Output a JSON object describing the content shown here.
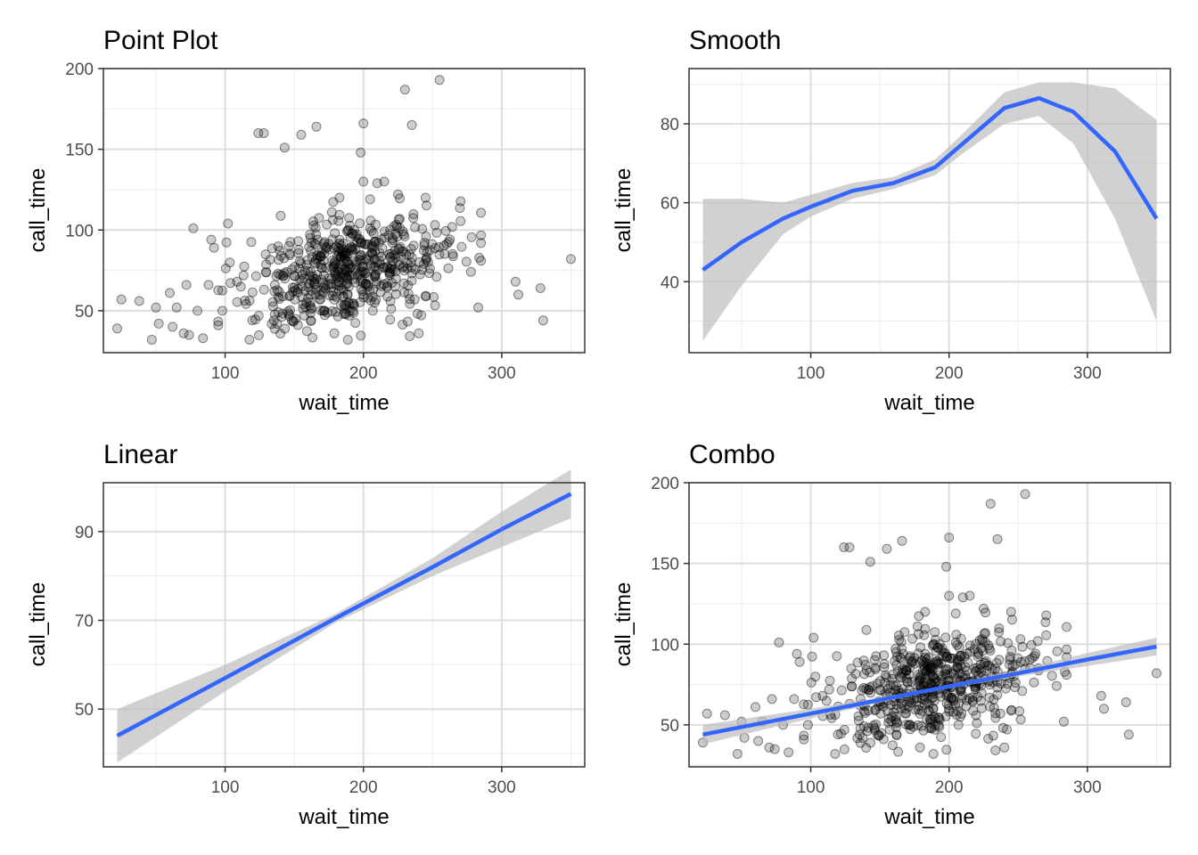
{
  "chart_data": [
    {
      "type": "scatter",
      "title": "Point Plot",
      "xlabel": "wait_time",
      "ylabel": "call_time",
      "xlim": [
        12,
        360
      ],
      "ylim": [
        24,
        200
      ],
      "xticks": [
        100,
        200,
        300
      ],
      "xtick_labels": [
        "100",
        "200",
        "300"
      ],
      "yticks": [
        50,
        100,
        150,
        200
      ],
      "ytick_labels": [
        "50",
        "100",
        "150",
        "200"
      ],
      "grid": true,
      "point_color": "#000000",
      "point_opacity": 0.2,
      "outliers": [
        [
          230,
          187
        ],
        [
          255,
          193
        ],
        [
          235,
          165
        ],
        [
          200,
          166
        ],
        [
          166,
          164
        ],
        [
          155,
          159
        ],
        [
          124,
          160
        ],
        [
          128,
          160
        ],
        [
          198,
          148
        ],
        [
          143,
          151
        ],
        [
          200,
          130
        ],
        [
          210,
          129
        ],
        [
          215,
          130
        ],
        [
          225,
          122
        ],
        [
          22,
          39
        ],
        [
          25,
          57
        ],
        [
          38,
          56
        ],
        [
          47,
          32
        ],
        [
          50,
          52
        ],
        [
          52,
          42
        ],
        [
          60,
          61
        ],
        [
          62,
          40
        ],
        [
          65,
          52
        ],
        [
          70,
          36
        ],
        [
          72,
          66
        ],
        [
          74,
          35
        ],
        [
          77,
          101
        ],
        [
          80,
          50
        ],
        [
          84,
          33
        ],
        [
          88,
          66
        ],
        [
          90,
          94
        ],
        [
          92,
          89
        ],
        [
          95,
          41
        ],
        [
          98,
          50
        ],
        [
          102,
          104
        ],
        [
          310,
          68
        ],
        [
          312,
          60
        ],
        [
          328,
          64
        ],
        [
          330,
          44
        ],
        [
          350,
          82
        ],
        [
          285,
          81
        ],
        [
          283,
          52
        ],
        [
          240,
          36
        ]
      ],
      "cluster": {
        "n": 560,
        "x_range": [
          95,
          285
        ],
        "x_center": 190,
        "y_center": 75,
        "y_min": 32,
        "y_max": 120
      }
    },
    {
      "type": "line",
      "title": "Smooth",
      "xlabel": "wait_time",
      "ylabel": "call_time",
      "xlim": [
        12,
        360
      ],
      "ylim": [
        22,
        94
      ],
      "xticks": [
        100,
        200,
        300
      ],
      "xtick_labels": [
        "100",
        "200",
        "300"
      ],
      "yticks": [
        40,
        60,
        80
      ],
      "ytick_labels": [
        "40",
        "60",
        "80"
      ],
      "grid": true,
      "line_color": "#3366FF",
      "band_color": "#BEBEBE",
      "series": [
        {
          "x": [
            22,
            50,
            80,
            100,
            130,
            160,
            190,
            210,
            240,
            265,
            290,
            320,
            350
          ],
          "y": [
            43,
            50,
            56,
            59,
            63,
            65,
            69,
            75,
            84,
            86.5,
            83,
            73,
            56
          ],
          "ymin": [
            25,
            39,
            52,
            56.5,
            61,
            63.5,
            67,
            72.5,
            80,
            82,
            75,
            56,
            30
          ],
          "ymax": [
            61,
            61,
            60,
            62,
            65,
            66.5,
            71,
            77.5,
            88,
            90.5,
            90.5,
            89,
            81
          ]
        }
      ]
    },
    {
      "type": "line",
      "title": "Linear",
      "xlabel": "wait_time",
      "ylabel": "call_time",
      "xlim": [
        12,
        360
      ],
      "ylim": [
        37,
        101
      ],
      "xticks": [
        100,
        200,
        300
      ],
      "xtick_labels": [
        "100",
        "200",
        "300"
      ],
      "yticks": [
        50,
        70,
        90
      ],
      "ytick_labels": [
        "50",
        "70",
        "90"
      ],
      "grid": true,
      "line_color": "#3366FF",
      "band_color": "#BEBEBE",
      "series": [
        {
          "x": [
            22,
            100,
            180,
            250,
            300,
            350
          ],
          "y": [
            44,
            57,
            70.5,
            82,
            90.5,
            98.5
          ],
          "ymin": [
            38,
            54,
            69.5,
            80,
            86.5,
            93
          ],
          "ymax": [
            50,
            60,
            71.5,
            84,
            94.5,
            104
          ]
        }
      ]
    },
    {
      "type": "scatter",
      "title": "Combo",
      "xlabel": "wait_time",
      "ylabel": "call_time",
      "xlim": [
        12,
        360
      ],
      "ylim": [
        24,
        200
      ],
      "xticks": [
        100,
        200,
        300
      ],
      "xtick_labels": [
        "100",
        "200",
        "300"
      ],
      "yticks": [
        50,
        100,
        150,
        200
      ],
      "ytick_labels": [
        "50",
        "100",
        "150",
        "200"
      ],
      "grid": true,
      "point_color": "#000000",
      "point_opacity": 0.2,
      "line_color": "#3366FF",
      "band_color": "#BEBEBE",
      "outliers": [
        [
          230,
          187
        ],
        [
          255,
          193
        ],
        [
          235,
          165
        ],
        [
          200,
          166
        ],
        [
          166,
          164
        ],
        [
          155,
          159
        ],
        [
          124,
          160
        ],
        [
          128,
          160
        ],
        [
          198,
          148
        ],
        [
          143,
          151
        ],
        [
          200,
          130
        ],
        [
          210,
          129
        ],
        [
          215,
          130
        ],
        [
          225,
          122
        ],
        [
          22,
          39
        ],
        [
          25,
          57
        ],
        [
          38,
          56
        ],
        [
          47,
          32
        ],
        [
          50,
          52
        ],
        [
          52,
          42
        ],
        [
          60,
          61
        ],
        [
          62,
          40
        ],
        [
          65,
          52
        ],
        [
          70,
          36
        ],
        [
          72,
          66
        ],
        [
          74,
          35
        ],
        [
          77,
          101
        ],
        [
          80,
          50
        ],
        [
          84,
          33
        ],
        [
          88,
          66
        ],
        [
          90,
          94
        ],
        [
          92,
          89
        ],
        [
          95,
          41
        ],
        [
          98,
          50
        ],
        [
          102,
          104
        ],
        [
          310,
          68
        ],
        [
          312,
          60
        ],
        [
          328,
          64
        ],
        [
          330,
          44
        ],
        [
          350,
          82
        ],
        [
          285,
          81
        ],
        [
          283,
          52
        ],
        [
          240,
          36
        ]
      ],
      "cluster": {
        "n": 560,
        "x_range": [
          95,
          285
        ],
        "x_center": 190,
        "y_center": 75,
        "y_min": 32,
        "y_max": 120
      },
      "series": [
        {
          "x": [
            22,
            100,
            180,
            250,
            300,
            350
          ],
          "y": [
            44,
            57,
            70.5,
            82,
            90.5,
            98.5
          ],
          "ymin": [
            38,
            54,
            69.5,
            80,
            86.5,
            93
          ],
          "ymax": [
            50,
            60,
            71.5,
            84,
            94.5,
            104
          ]
        }
      ]
    }
  ]
}
